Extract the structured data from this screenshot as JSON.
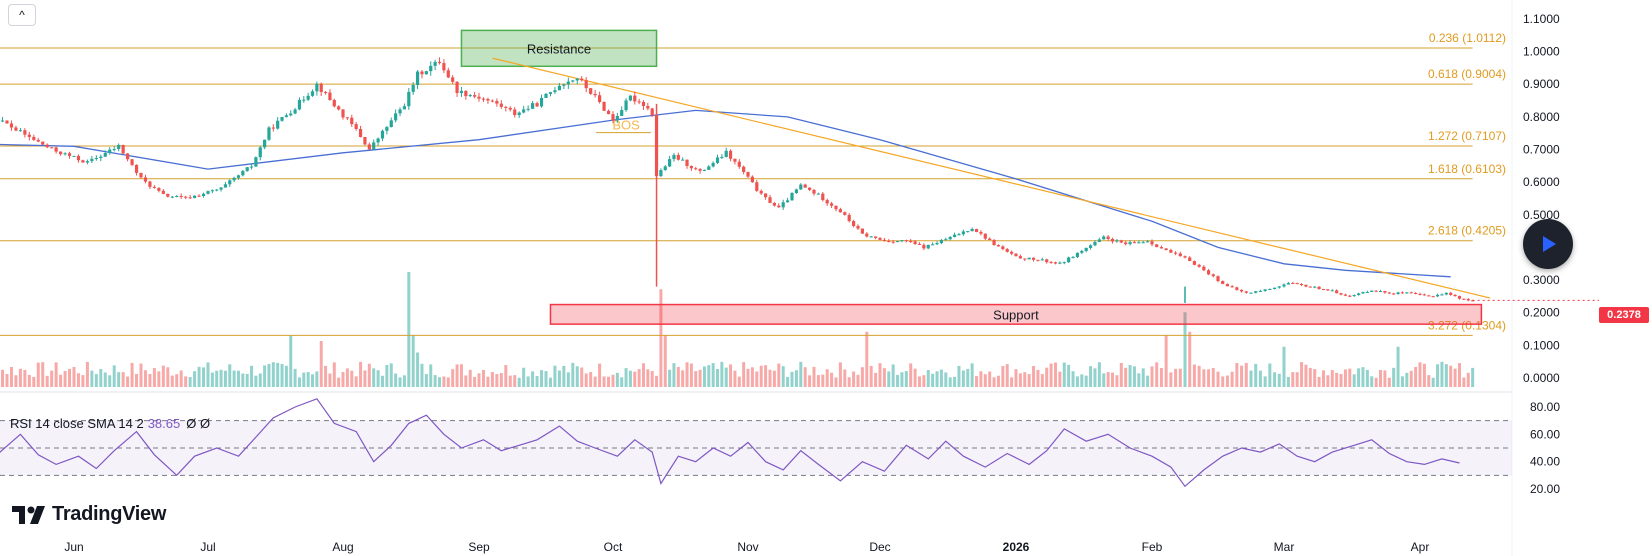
{
  "ui": {
    "collapse_label": "^",
    "logo_icon": "tradingview-logo-icon",
    "logo_text": "TradingView",
    "play_icon": "play-icon",
    "rsi_legend": {
      "name": "RSI 14 close SMA 14 2",
      "value": "38.65",
      "state": "Ø Ø"
    }
  },
  "chart_data": {
    "type": "candlestick",
    "x_unit": "date",
    "x_ticks": [
      "Jun",
      "Jul",
      "Aug",
      "Sep",
      "Oct",
      "Nov",
      "Dec",
      "2026",
      "Feb",
      "Mar",
      "Apr"
    ],
    "x_tick_dates": [
      "2025-06-01",
      "2025-07-01",
      "2025-08-01",
      "2025-09-01",
      "2025-10-01",
      "2025-11-01",
      "2025-12-01",
      "2026-01-01",
      "2026-02-01",
      "2026-03-01",
      "2026-04-01"
    ],
    "price_ticks": [
      "1.1000",
      "1.0000",
      "0.9000",
      "0.8000",
      "0.7000",
      "0.6000",
      "0.5000",
      "0.4000",
      "0.3000",
      "0.2000",
      "0.1000",
      "0.0000"
    ],
    "price_tick_values": [
      1.1,
      1.0,
      0.9,
      0.8,
      0.7,
      0.6,
      0.5,
      0.4,
      0.3,
      0.2,
      0.1,
      0.0
    ],
    "ylim": [
      0.0,
      1.1
    ],
    "last_price": {
      "label": "0.2378",
      "value": 0.2378,
      "color": "#f23645"
    },
    "colors": {
      "up": "#26a69a",
      "down": "#ef5350",
      "ma": "#4a6fd4",
      "fib": "#d4a12e",
      "rsi": "#7e57c2",
      "support": "#f23645",
      "resistance": "#4caf50"
    },
    "price_path": [
      [
        "2025-05-02",
        0.78
      ],
      [
        "2025-05-10",
        0.8
      ],
      [
        "2025-05-12",
        0.83
      ],
      [
        "2025-05-20",
        0.76
      ],
      [
        "2025-05-28",
        0.7
      ],
      [
        "2025-06-05",
        0.66
      ],
      [
        "2025-06-12",
        0.71
      ],
      [
        "2025-06-17",
        0.61
      ],
      [
        "2025-06-22",
        0.56
      ],
      [
        "2025-06-27",
        0.55
      ],
      [
        "2025-07-05",
        0.58
      ],
      [
        "2025-07-12",
        0.65
      ],
      [
        "2025-07-16",
        0.76
      ],
      [
        "2025-07-22",
        0.83
      ],
      [
        "2025-07-27",
        0.9
      ],
      [
        "2025-08-01",
        0.82
      ],
      [
        "2025-08-05",
        0.76
      ],
      [
        "2025-08-08",
        0.7
      ],
      [
        "2025-08-12",
        0.77
      ],
      [
        "2025-08-16",
        0.84
      ],
      [
        "2025-08-19",
        0.93
      ],
      [
        "2025-08-24",
        0.97
      ],
      [
        "2025-08-28",
        0.88
      ],
      [
        "2025-09-02",
        0.86
      ],
      [
        "2025-09-06",
        0.84
      ],
      [
        "2025-09-10",
        0.81
      ],
      [
        "2025-09-15",
        0.84
      ],
      [
        "2025-09-20",
        0.9
      ],
      [
        "2025-09-24",
        0.92
      ],
      [
        "2025-09-28",
        0.86
      ],
      [
        "2025-10-02",
        0.79
      ],
      [
        "2025-10-06",
        0.86
      ],
      [
        "2025-10-09",
        0.84
      ],
      [
        "2025-10-11",
        0.81
      ],
      [
        "2025-10-12",
        0.62
      ],
      [
        "2025-10-16",
        0.68
      ],
      [
        "2025-10-22",
        0.63
      ],
      [
        "2025-10-28",
        0.69
      ],
      [
        "2025-11-01",
        0.63
      ],
      [
        "2025-11-05",
        0.56
      ],
      [
        "2025-11-09",
        0.52
      ],
      [
        "2025-11-14",
        0.59
      ],
      [
        "2025-11-18",
        0.56
      ],
      [
        "2025-11-23",
        0.51
      ],
      [
        "2025-11-28",
        0.44
      ],
      [
        "2025-12-03",
        0.42
      ],
      [
        "2025-12-08",
        0.42
      ],
      [
        "2025-12-12",
        0.4
      ],
      [
        "2025-12-18",
        0.43
      ],
      [
        "2025-12-23",
        0.46
      ],
      [
        "2025-12-28",
        0.41
      ],
      [
        "2026-01-02",
        0.37
      ],
      [
        "2026-01-08",
        0.36
      ],
      [
        "2026-01-12",
        0.35
      ],
      [
        "2026-01-17",
        0.39
      ],
      [
        "2026-01-22",
        0.43
      ],
      [
        "2026-01-27",
        0.41
      ],
      [
        "2026-02-01",
        0.42
      ],
      [
        "2026-02-05",
        0.39
      ],
      [
        "2026-02-10",
        0.36
      ],
      [
        "2026-02-14",
        0.32
      ],
      [
        "2026-02-18",
        0.28
      ],
      [
        "2026-02-22",
        0.26
      ],
      [
        "2026-02-26",
        0.27
      ],
      [
        "2026-03-03",
        0.29
      ],
      [
        "2026-03-08",
        0.28
      ],
      [
        "2026-03-12",
        0.27
      ],
      [
        "2026-03-17",
        0.25
      ],
      [
        "2026-03-22",
        0.27
      ],
      [
        "2026-03-26",
        0.26
      ],
      [
        "2026-03-30",
        0.26
      ],
      [
        "2026-04-04",
        0.25
      ],
      [
        "2026-04-08",
        0.26
      ],
      [
        "2026-04-12",
        0.24
      ],
      [
        "2026-04-13",
        0.2378
      ]
    ],
    "moving_average": [
      [
        "2025-05-01",
        0.72
      ],
      [
        "2025-06-01",
        0.71
      ],
      [
        "2025-07-01",
        0.64
      ],
      [
        "2025-08-01",
        0.69
      ],
      [
        "2025-09-01",
        0.73
      ],
      [
        "2025-10-01",
        0.79
      ],
      [
        "2025-10-20",
        0.82
      ],
      [
        "2025-11-10",
        0.8
      ],
      [
        "2025-12-01",
        0.73
      ],
      [
        "2026-01-01",
        0.61
      ],
      [
        "2026-02-01",
        0.48
      ],
      [
        "2026-02-15",
        0.4
      ],
      [
        "2026-03-01",
        0.35
      ],
      [
        "2026-03-15",
        0.33
      ],
      [
        "2026-04-08",
        0.31
      ]
    ],
    "wicks": [
      {
        "date": "2025-10-11",
        "high": 0.84,
        "low": 0.28,
        "color": "down"
      },
      {
        "date": "2026-02-08",
        "high": 0.28,
        "low": 0.23,
        "color": "up"
      }
    ],
    "fib_levels": [
      {
        "label": "0.236 (1.0112)",
        "value": 1.0112
      },
      {
        "label": "0.618 (0.9004)",
        "value": 0.9004
      },
      {
        "label": "1.272 (0.7107)",
        "value": 0.7107
      },
      {
        "label": "1.618 (0.6103)",
        "value": 0.6103
      },
      {
        "label": "2.618 (0.4205)",
        "value": 0.4205
      },
      {
        "label": "3.272 (0.1304)",
        "value": 0.1304
      }
    ],
    "fib_start_date": "2025-05-10",
    "fib_end_date": "2026-04-13",
    "trendline": {
      "from": [
        "2025-09-04",
        0.98
      ],
      "to": [
        "2026-04-17",
        0.245
      ]
    },
    "bos_label": {
      "text": "BOS",
      "date": "2025-10-04",
      "value": 0.77
    },
    "zones": [
      {
        "label": "Resistance",
        "from": "2025-08-28",
        "to": "2025-10-11",
        "top": 1.065,
        "bottom": 0.955,
        "kind": "resistance"
      },
      {
        "label": "Support",
        "from": "2025-09-17",
        "to": "2026-04-15",
        "top": 0.225,
        "bottom": 0.165,
        "kind": "support"
      }
    ],
    "volume_max": 100,
    "volume_spikes": [
      {
        "date": "2025-08-16",
        "value": 100,
        "color": "up"
      },
      {
        "date": "2025-08-17",
        "value": 45,
        "color": "up"
      },
      {
        "date": "2025-08-18",
        "value": 30,
        "color": "up"
      },
      {
        "date": "2025-07-20",
        "value": 45,
        "color": "up"
      },
      {
        "date": "2025-07-27",
        "value": 40,
        "color": "down"
      },
      {
        "date": "2025-10-12",
        "value": 85,
        "color": "down"
      },
      {
        "date": "2025-10-13",
        "value": 45,
        "color": "down"
      },
      {
        "date": "2025-11-28",
        "value": 48,
        "color": "down"
      },
      {
        "date": "2026-02-04",
        "value": 45,
        "color": "down"
      },
      {
        "date": "2026-02-08",
        "value": 65,
        "color": "up"
      },
      {
        "date": "2026-02-09",
        "value": 48,
        "color": "down"
      },
      {
        "date": "2026-03-01",
        "value": 35,
        "color": "up"
      },
      {
        "date": "2026-03-27",
        "value": 35,
        "color": "up"
      }
    ],
    "rsi": {
      "ticks": [
        "80.00",
        "60.00",
        "40.00",
        "20.00"
      ],
      "tick_values": [
        80,
        60,
        40,
        20
      ],
      "ylim": [
        15,
        88
      ],
      "band": [
        30,
        70
      ],
      "mid": 50,
      "path": [
        [
          "2025-05-01",
          50
        ],
        [
          "2025-05-06",
          62
        ],
        [
          "2025-05-10",
          54
        ],
        [
          "2025-05-14",
          43
        ],
        [
          "2025-05-20",
          60
        ],
        [
          "2025-05-24",
          45
        ],
        [
          "2025-05-28",
          38
        ],
        [
          "2025-06-02",
          44
        ],
        [
          "2025-06-06",
          35
        ],
        [
          "2025-06-10",
          48
        ],
        [
          "2025-06-15",
          62
        ],
        [
          "2025-06-19",
          45
        ],
        [
          "2025-06-24",
          30
        ],
        [
          "2025-06-28",
          44
        ],
        [
          "2025-07-03",
          50
        ],
        [
          "2025-07-08",
          44
        ],
        [
          "2025-07-12",
          58
        ],
        [
          "2025-07-16",
          72
        ],
        [
          "2025-07-21",
          80
        ],
        [
          "2025-07-26",
          86
        ],
        [
          "2025-07-30",
          68
        ],
        [
          "2025-08-04",
          62
        ],
        [
          "2025-08-08",
          40
        ],
        [
          "2025-08-12",
          52
        ],
        [
          "2025-08-16",
          68
        ],
        [
          "2025-08-20",
          74
        ],
        [
          "2025-08-24",
          60
        ],
        [
          "2025-08-28",
          50
        ],
        [
          "2025-09-02",
          56
        ],
        [
          "2025-09-06",
          48
        ],
        [
          "2025-09-10",
          52
        ],
        [
          "2025-09-14",
          56
        ],
        [
          "2025-09-19",
          66
        ],
        [
          "2025-09-23",
          55
        ],
        [
          "2025-09-27",
          50
        ],
        [
          "2025-10-02",
          44
        ],
        [
          "2025-10-06",
          56
        ],
        [
          "2025-10-10",
          47
        ],
        [
          "2025-10-12",
          24
        ],
        [
          "2025-10-16",
          44
        ],
        [
          "2025-10-20",
          40
        ],
        [
          "2025-10-24",
          50
        ],
        [
          "2025-10-28",
          44
        ],
        [
          "2025-11-01",
          54
        ],
        [
          "2025-11-05",
          40
        ],
        [
          "2025-11-09",
          34
        ],
        [
          "2025-11-13",
          48
        ],
        [
          "2025-11-17",
          38
        ],
        [
          "2025-11-22",
          26
        ],
        [
          "2025-11-27",
          40
        ],
        [
          "2025-12-02",
          33
        ],
        [
          "2025-12-07",
          52
        ],
        [
          "2025-12-12",
          42
        ],
        [
          "2025-12-16",
          55
        ],
        [
          "2025-12-20",
          44
        ],
        [
          "2025-12-25",
          36
        ],
        [
          "2025-12-30",
          46
        ],
        [
          "2026-01-04",
          38
        ],
        [
          "2026-01-08",
          48
        ],
        [
          "2026-01-12",
          64
        ],
        [
          "2026-01-17",
          55
        ],
        [
          "2026-01-22",
          60
        ],
        [
          "2026-01-27",
          50
        ],
        [
          "2026-02-01",
          44
        ],
        [
          "2026-02-05",
          36
        ],
        [
          "2026-02-08",
          22
        ],
        [
          "2026-02-12",
          34
        ],
        [
          "2026-02-16",
          44
        ],
        [
          "2026-02-20",
          50
        ],
        [
          "2026-02-24",
          47
        ],
        [
          "2026-02-28",
          53
        ],
        [
          "2026-03-04",
          44
        ],
        [
          "2026-03-08",
          40
        ],
        [
          "2026-03-12",
          47
        ],
        [
          "2026-03-17",
          52
        ],
        [
          "2026-03-21",
          56
        ],
        [
          "2026-03-25",
          46
        ],
        [
          "2026-03-29",
          40
        ],
        [
          "2026-04-02",
          38
        ],
        [
          "2026-04-06",
          42
        ],
        [
          "2026-04-10",
          39
        ]
      ]
    }
  }
}
